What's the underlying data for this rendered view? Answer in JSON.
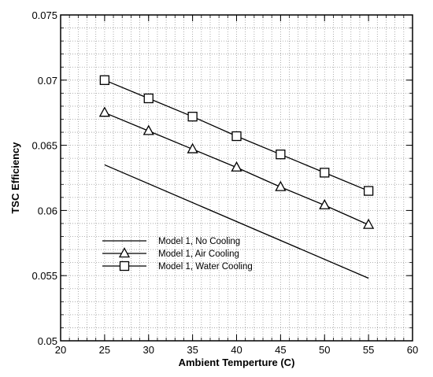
{
  "chart_data": {
    "type": "line",
    "title": "",
    "xlabel": "Ambient Temperture (C)",
    "ylabel": "TSC Efficiency",
    "xlim": [
      20,
      60
    ],
    "ylim": [
      0.05,
      0.075
    ],
    "x_ticks": [
      20,
      25,
      30,
      35,
      40,
      45,
      50,
      55,
      60
    ],
    "y_ticks": [
      0.05,
      0.055,
      0.06,
      0.065,
      0.07,
      0.075
    ],
    "x_tick_labels": [
      "20",
      "25",
      "30",
      "35",
      "40",
      "45",
      "50",
      "55",
      "60"
    ],
    "y_tick_labels": [
      "0.05",
      "0.055",
      "0.06",
      "0.065",
      "0.07",
      "0.075"
    ],
    "grid": "dotted",
    "legend_position": "lower-left",
    "series": [
      {
        "name": "Model 1, No Cooling",
        "marker": "none",
        "x": [
          25,
          55
        ],
        "y": [
          0.0635,
          0.0548
        ]
      },
      {
        "name": "Model 1, Air Cooling",
        "marker": "triangle",
        "x": [
          25,
          30,
          35,
          40,
          45,
          50,
          55
        ],
        "y": [
          0.0675,
          0.0661,
          0.0647,
          0.0633,
          0.0618,
          0.0604,
          0.0589
        ]
      },
      {
        "name": "Model 1, Water Cooling",
        "marker": "square",
        "x": [
          25,
          30,
          35,
          40,
          45,
          50,
          55
        ],
        "y": [
          0.07,
          0.0686,
          0.0672,
          0.0657,
          0.0643,
          0.0629,
          0.0615
        ]
      }
    ]
  }
}
